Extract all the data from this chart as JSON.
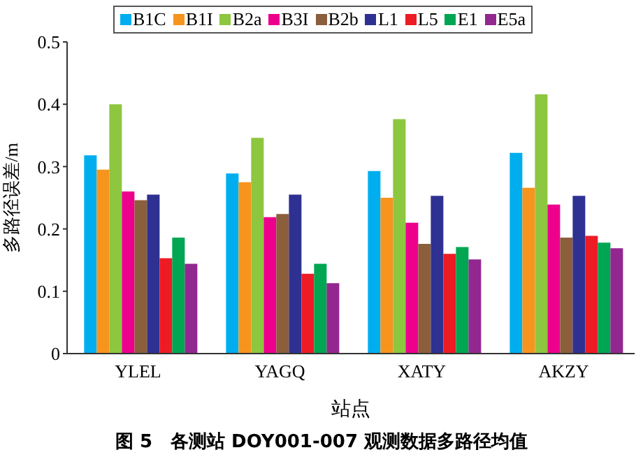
{
  "chart_data": {
    "type": "bar",
    "xlabel": "站点",
    "ylabel": "多路径误差/m",
    "categories": [
      "YLEL",
      "YAGQ",
      "XATY",
      "AKZY"
    ],
    "series": [
      {
        "name": "B1C",
        "color": "#00aeef",
        "values": [
          0.318,
          0.289,
          0.293,
          0.322
        ]
      },
      {
        "name": "B1I",
        "color": "#f7941d",
        "values": [
          0.295,
          0.275,
          0.25,
          0.266
        ]
      },
      {
        "name": "B2a",
        "color": "#8dc63f",
        "values": [
          0.4,
          0.346,
          0.376,
          0.416
        ]
      },
      {
        "name": "B3I",
        "color": "#ec008c",
        "values": [
          0.26,
          0.219,
          0.21,
          0.239
        ]
      },
      {
        "name": "B2b",
        "color": "#8b5e3c",
        "values": [
          0.246,
          0.224,
          0.176,
          0.186
        ]
      },
      {
        "name": "L1",
        "color": "#2e3192",
        "values": [
          0.255,
          0.255,
          0.253,
          0.253
        ]
      },
      {
        "name": "L5",
        "color": "#ed1c24",
        "values": [
          0.153,
          0.128,
          0.16,
          0.189
        ]
      },
      {
        "name": "E1",
        "color": "#00a651",
        "values": [
          0.186,
          0.144,
          0.171,
          0.178
        ]
      },
      {
        "name": "E5a",
        "color": "#92278f",
        "values": [
          0.144,
          0.113,
          0.151,
          0.169
        ]
      }
    ],
    "ylim": [
      0,
      0.5
    ],
    "yticks": [
      0,
      0.1,
      0.2,
      0.3,
      0.4,
      0.5
    ],
    "grid": false,
    "legend": "top",
    "annotations": [
      "图 5　各测站 DOY001-007 观测数据多路径均值"
    ]
  }
}
